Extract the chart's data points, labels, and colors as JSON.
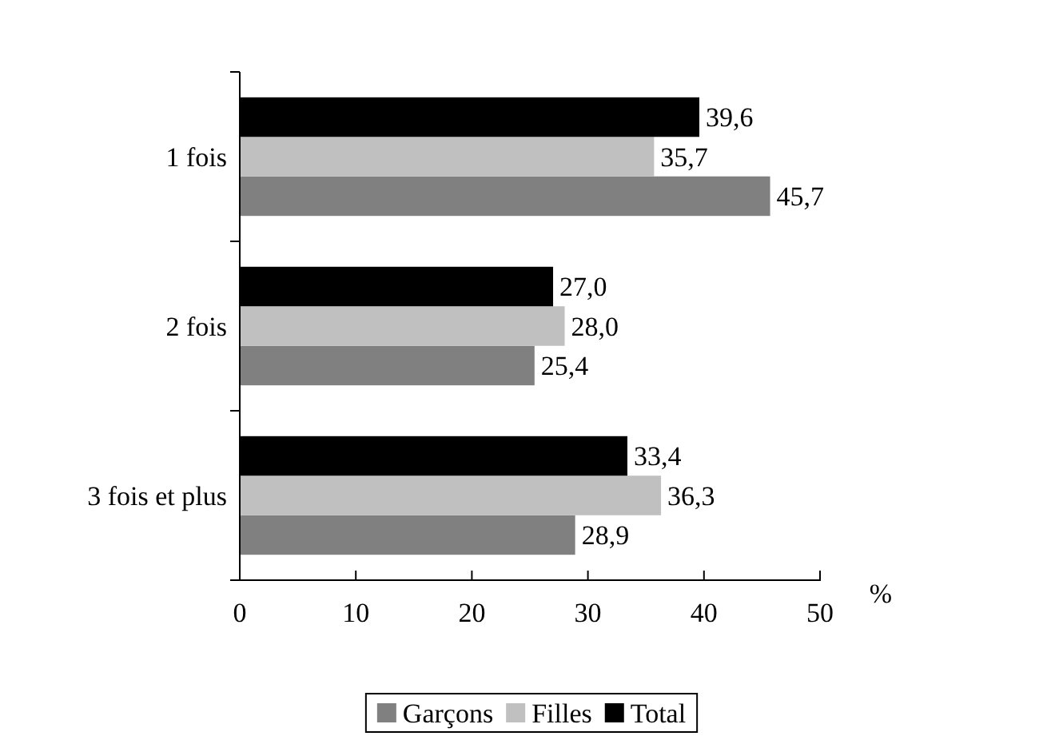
{
  "chart_data": {
    "type": "bar",
    "orientation": "horizontal",
    "categories": [
      "1 fois",
      "2 fois",
      "3 fois et plus"
    ],
    "series": [
      {
        "name": "Garçons",
        "color": "#808080",
        "values": [
          45.7,
          25.4,
          28.9
        ],
        "value_labels": [
          "45,7",
          "25,4",
          "28,9"
        ]
      },
      {
        "name": "Filles",
        "color": "#c0c0c0",
        "values": [
          35.7,
          28.0,
          36.3
        ],
        "value_labels": [
          "35,7",
          "28,0",
          "36,3"
        ]
      },
      {
        "name": "Total",
        "color": "#000000",
        "values": [
          39.6,
          27.0,
          33.4
        ],
        "value_labels": [
          "39,6",
          "27,0",
          "33,4"
        ]
      }
    ],
    "xlabel": "%",
    "xlim": [
      0,
      50
    ],
    "xticks": [
      0,
      10,
      20,
      30,
      40,
      50
    ],
    "grid": false,
    "legend": "bottom"
  }
}
